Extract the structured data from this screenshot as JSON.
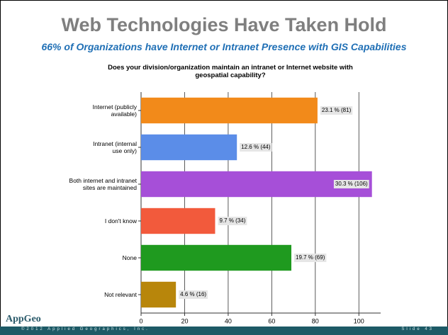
{
  "header": {
    "title": "Web Technologies Have Taken Hold",
    "subtitle": "66% of Organizations have Internet or Intranet Presence with GIS Capabilities"
  },
  "chart_data": {
    "type": "hbar",
    "title": "Does your division/organization maintain an intranet or Internet website with geospatial capability?",
    "categories": [
      "Internet (publicly\navailable)",
      "Intranet (internal\nuse only)",
      "Both internet and intranet\nsites are maintained",
      "I don't know",
      "None",
      "Not relevant"
    ],
    "values": [
      81,
      44,
      106,
      34,
      69,
      16
    ],
    "value_labels": [
      "23.1 % (81)",
      "12.6 % (44)",
      "30.3 % (106)",
      "9.7 % (34)",
      "19.7 % (69)",
      "4.6 % (16)"
    ],
    "colors": [
      "#f28a1a",
      "#5b8de8",
      "#a64fd8",
      "#f25a3c",
      "#1f9a1f",
      "#b8860b"
    ],
    "xlim": [
      0,
      110
    ],
    "xticks": [
      0,
      20,
      40,
      60,
      80,
      100
    ],
    "grid": true
  },
  "footer": {
    "logo": "AppGeo",
    "copyright": "©2012 Applied Geographics, Inc.",
    "slide": "Slide 43"
  }
}
